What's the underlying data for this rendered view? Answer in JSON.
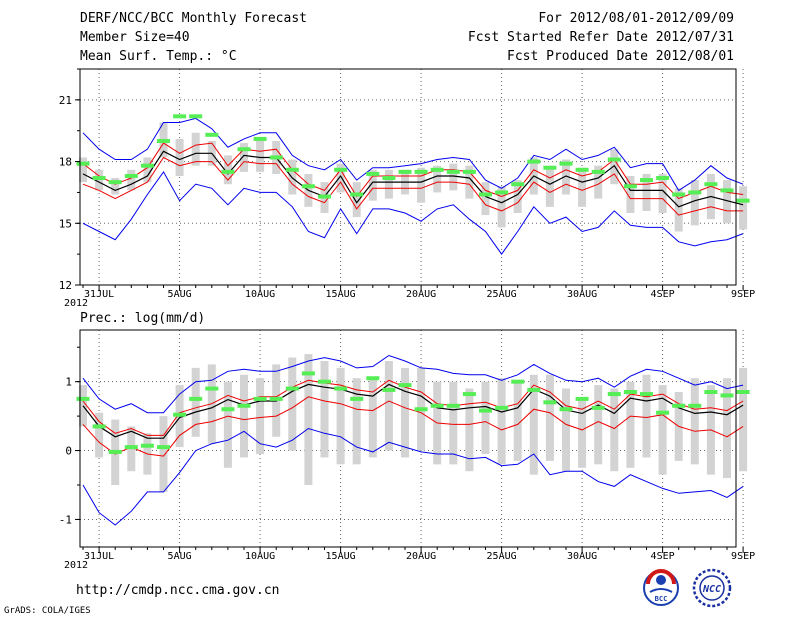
{
  "header": {
    "title": "DERF/NCC/BCC Monthly Forecast",
    "member_size": "Member Size=40",
    "variable": "Mean Surf. Temp.: °C",
    "period": "For 2012/08/01-2012/09/09",
    "started": "Fcst Started Refer Date 2012/07/31",
    "produced": "Fcst Produced Date 2012/08/01"
  },
  "footer": {
    "url": "http://cmdp.ncc.cma.gov.cn",
    "grads": "GrADS: COLA/IGES",
    "bcc_logo_text": "BCC",
    "ncc_logo_text": "NCC"
  },
  "colors": {
    "envelope": "#0000ee",
    "spread": "#ee0000",
    "mean": "#000000",
    "box": "#d3d3d3",
    "marker": "#55ee55",
    "grid": "#666666"
  },
  "chart_data": [
    {
      "type": "line",
      "title": "Mean Surf. Temp.: °C",
      "x_days": 41,
      "x_tick_labels": [
        "31JUL",
        "5AUG",
        "10AUG",
        "15AUG",
        "20AUG",
        "25AUG",
        "30AUG",
        "4SEP",
        "9SEP"
      ],
      "x_year_label": "2012",
      "ylim": [
        12,
        22.5
      ],
      "y_ticks": [
        12,
        15,
        18,
        21
      ],
      "series": [
        {
          "name": "max",
          "values": [
            19.4,
            18.6,
            18.1,
            18.1,
            18.6,
            19.9,
            19.9,
            20.1,
            19.6,
            18.7,
            19.1,
            19.4,
            19.4,
            18.3,
            17.8,
            17.6,
            18.1,
            17.1,
            17.7,
            17.7,
            17.8,
            17.9,
            18.1,
            18.2,
            18.1,
            17.1,
            16.7,
            17.2,
            18.3,
            18.1,
            18.6,
            18.1,
            18.3,
            18.7,
            17.7,
            17.9,
            17.9,
            16.6,
            17.1,
            17.8,
            17.2,
            16.9
          ]
        },
        {
          "name": "upper",
          "values": [
            17.9,
            17.3,
            16.9,
            17.2,
            17.7,
            18.9,
            18.4,
            18.8,
            18.9,
            17.8,
            18.6,
            18.5,
            18.6,
            17.6,
            16.9,
            16.6,
            17.6,
            16.3,
            17.3,
            17.3,
            17.3,
            17.3,
            17.6,
            17.6,
            17.5,
            16.6,
            16.3,
            16.6,
            17.6,
            17.2,
            17.6,
            17.3,
            17.5,
            18.1,
            16.9,
            16.9,
            17.0,
            16.2,
            16.5,
            16.8,
            16.5,
            16.4
          ]
        },
        {
          "name": "mean",
          "values": [
            17.4,
            17.0,
            16.6,
            16.9,
            17.3,
            18.5,
            18.1,
            18.4,
            18.4,
            17.4,
            18.3,
            18.2,
            18.2,
            17.2,
            16.6,
            16.3,
            17.3,
            16.0,
            17.0,
            17.0,
            17.0,
            17.0,
            17.3,
            17.3,
            17.2,
            16.3,
            16.0,
            16.4,
            17.3,
            16.9,
            17.3,
            17.0,
            17.2,
            17.8,
            16.6,
            16.6,
            16.6,
            15.8,
            16.1,
            16.3,
            16.1,
            15.9
          ]
        },
        {
          "name": "lower",
          "values": [
            16.9,
            16.6,
            16.2,
            16.6,
            17.0,
            18.2,
            17.8,
            18.0,
            18.0,
            17.1,
            18.0,
            17.9,
            17.9,
            16.9,
            16.3,
            16.0,
            17.0,
            15.7,
            16.7,
            16.7,
            16.7,
            16.7,
            17.0,
            17.0,
            16.9,
            15.9,
            15.6,
            16.0,
            17.0,
            16.5,
            16.9,
            16.6,
            16.9,
            17.4,
            16.2,
            16.2,
            16.2,
            15.4,
            15.6,
            15.8,
            15.6,
            15.6
          ]
        },
        {
          "name": "min",
          "values": [
            15.0,
            14.6,
            14.2,
            15.2,
            16.4,
            17.5,
            16.1,
            16.9,
            16.7,
            15.9,
            16.7,
            16.5,
            16.5,
            15.8,
            14.6,
            14.3,
            15.7,
            14.5,
            15.7,
            15.7,
            15.5,
            15.1,
            15.7,
            15.9,
            15.2,
            14.6,
            13.5,
            14.6,
            15.8,
            15.0,
            15.3,
            14.6,
            14.8,
            15.6,
            14.9,
            14.8,
            14.8,
            14.1,
            13.9,
            14.1,
            14.2,
            14.5
          ]
        }
      ],
      "boxes": [
        [
          17.0,
          18.2
        ],
        [
          16.6,
          17.6
        ],
        [
          16.4,
          17.2
        ],
        [
          16.6,
          17.6
        ],
        [
          17.0,
          18.2
        ],
        [
          18.2,
          19.9
        ],
        [
          17.3,
          19.1
        ],
        [
          17.8,
          19.4
        ],
        [
          17.8,
          19.0
        ],
        [
          16.9,
          18.3
        ],
        [
          17.5,
          18.9
        ],
        [
          17.5,
          19.2
        ],
        [
          17.4,
          19.0
        ],
        [
          16.4,
          18.1
        ],
        [
          15.8,
          17.4
        ],
        [
          15.5,
          17.0
        ],
        [
          16.5,
          17.9
        ],
        [
          15.3,
          17.0
        ],
        [
          16.1,
          17.6
        ],
        [
          16.2,
          17.6
        ],
        [
          16.4,
          17.6
        ],
        [
          16.0,
          17.7
        ],
        [
          16.5,
          17.8
        ],
        [
          16.6,
          17.9
        ],
        [
          16.2,
          17.8
        ],
        [
          15.4,
          17.0
        ],
        [
          14.8,
          16.8
        ],
        [
          15.5,
          17.1
        ],
        [
          16.4,
          18.2
        ],
        [
          15.8,
          17.8
        ],
        [
          16.4,
          18.1
        ],
        [
          15.8,
          17.7
        ],
        [
          16.2,
          17.8
        ],
        [
          16.9,
          18.6
        ],
        [
          15.5,
          17.3
        ],
        [
          15.6,
          17.4
        ],
        [
          15.5,
          17.4
        ],
        [
          14.6,
          16.7
        ],
        [
          14.9,
          17.1
        ],
        [
          15.2,
          17.4
        ],
        [
          15.0,
          17.1
        ],
        [
          14.7,
          16.8
        ]
      ],
      "markers": [
        17.9,
        17.2,
        17.0,
        17.3,
        17.8,
        19.0,
        20.2,
        20.2,
        19.3,
        17.5,
        18.6,
        19.1,
        18.2,
        17.6,
        16.8,
        16.3,
        17.6,
        16.4,
        17.4,
        17.2,
        17.5,
        17.5,
        17.6,
        17.5,
        17.5,
        16.4,
        16.5,
        16.9,
        18.0,
        17.7,
        17.9,
        17.6,
        17.5,
        18.1,
        16.8,
        17.1,
        17.2,
        16.4,
        16.5,
        16.9,
        16.6,
        16.1
      ]
    },
    {
      "type": "line",
      "title": "Prec.: log(mm/d)",
      "x_days": 41,
      "x_tick_labels": [
        "31JUL",
        "5AUG",
        "10AUG",
        "15AUG",
        "20AUG",
        "25AUG",
        "30AUG",
        "4SEP",
        "9SEP"
      ],
      "x_year_label": "2012",
      "ylim": [
        -1.4,
        1.75
      ],
      "y_ticks": [
        -1,
        0,
        1
      ],
      "series": [
        {
          "name": "max",
          "values": [
            1.05,
            0.75,
            0.6,
            0.68,
            0.55,
            0.55,
            0.82,
            1.0,
            1.02,
            1.15,
            1.18,
            1.15,
            1.15,
            1.22,
            1.3,
            1.35,
            1.3,
            1.2,
            1.22,
            1.38,
            1.3,
            1.2,
            1.18,
            1.12,
            1.1,
            1.1,
            1.02,
            1.1,
            1.25,
            1.12,
            1.02,
            1.0,
            1.05,
            0.92,
            1.08,
            1.18,
            1.15,
            1.05,
            0.95,
            1.0,
            0.9,
            0.95
          ]
        },
        {
          "name": "upper",
          "values": [
            0.72,
            0.42,
            0.25,
            0.32,
            0.22,
            0.22,
            0.55,
            0.62,
            0.68,
            0.8,
            0.72,
            0.78,
            0.78,
            0.92,
            1.02,
            0.98,
            0.95,
            0.88,
            0.85,
            1.02,
            0.92,
            0.85,
            0.68,
            0.65,
            0.68,
            0.7,
            0.62,
            0.68,
            0.95,
            0.85,
            0.65,
            0.6,
            0.72,
            0.6,
            0.82,
            0.78,
            0.82,
            0.68,
            0.6,
            0.62,
            0.58,
            0.72
          ]
        },
        {
          "name": "mean",
          "values": [
            0.65,
            0.35,
            0.2,
            0.28,
            0.18,
            0.18,
            0.48,
            0.56,
            0.62,
            0.74,
            0.66,
            0.72,
            0.72,
            0.86,
            0.96,
            0.92,
            0.89,
            0.82,
            0.79,
            0.96,
            0.86,
            0.79,
            0.62,
            0.59,
            0.62,
            0.64,
            0.56,
            0.62,
            0.89,
            0.79,
            0.59,
            0.54,
            0.66,
            0.54,
            0.76,
            0.72,
            0.76,
            0.62,
            0.54,
            0.56,
            0.52,
            0.66
          ]
        },
        {
          "name": "lower",
          "values": [
            0.38,
            0.12,
            -0.05,
            0.05,
            -0.05,
            -0.08,
            0.22,
            0.38,
            0.42,
            0.5,
            0.45,
            0.48,
            0.5,
            0.62,
            0.78,
            0.72,
            0.68,
            0.6,
            0.58,
            0.72,
            0.62,
            0.55,
            0.4,
            0.38,
            0.38,
            0.42,
            0.3,
            0.38,
            0.6,
            0.55,
            0.38,
            0.3,
            0.42,
            0.32,
            0.5,
            0.48,
            0.52,
            0.35,
            0.28,
            0.3,
            0.2,
            0.35
          ]
        },
        {
          "name": "min",
          "values": [
            -0.5,
            -0.9,
            -1.08,
            -0.88,
            -0.6,
            -0.6,
            -0.32,
            0.0,
            0.1,
            0.15,
            0.28,
            0.1,
            0.05,
            0.15,
            0.32,
            0.25,
            0.2,
            0.05,
            -0.02,
            0.12,
            0.05,
            -0.02,
            -0.05,
            -0.05,
            -0.12,
            -0.1,
            -0.22,
            -0.2,
            -0.05,
            -0.35,
            -0.3,
            -0.3,
            -0.45,
            -0.52,
            -0.35,
            -0.45,
            -0.55,
            -0.62,
            -0.6,
            -0.58,
            -0.68,
            -0.52
          ]
        }
      ],
      "boxes": [
        [
          0.35,
          0.95
        ],
        [
          -0.1,
          0.55
        ],
        [
          -0.5,
          0.45
        ],
        [
          -0.3,
          0.35
        ],
        [
          -0.35,
          0.25
        ],
        [
          -0.6,
          0.5
        ],
        [
          0.05,
          0.95
        ],
        [
          0.2,
          1.2
        ],
        [
          0.1,
          1.25
        ],
        [
          -0.25,
          1.0
        ],
        [
          -0.1,
          1.1
        ],
        [
          -0.05,
          1.05
        ],
        [
          0.2,
          1.25
        ],
        [
          0.0,
          1.35
        ],
        [
          -0.5,
          1.4
        ],
        [
          -0.1,
          1.3
        ],
        [
          -0.2,
          1.2
        ],
        [
          -0.2,
          1.05
        ],
        [
          -0.1,
          1.05
        ],
        [
          0.0,
          1.3
        ],
        [
          -0.1,
          1.2
        ],
        [
          0.0,
          1.2
        ],
        [
          -0.2,
          1.0
        ],
        [
          -0.2,
          1.0
        ],
        [
          -0.3,
          0.9
        ],
        [
          -0.05,
          1.0
        ],
        [
          -0.2,
          1.05
        ],
        [
          -0.15,
          1.0
        ],
        [
          -0.35,
          1.1
        ],
        [
          -0.15,
          1.1
        ],
        [
          -0.3,
          0.9
        ],
        [
          -0.25,
          0.75
        ],
        [
          -0.2,
          0.95
        ],
        [
          -0.3,
          0.9
        ],
        [
          -0.25,
          1.0
        ],
        [
          -0.1,
          1.1
        ],
        [
          -0.35,
          0.95
        ],
        [
          -0.15,
          0.85
        ],
        [
          -0.2,
          1.05
        ],
        [
          -0.35,
          0.95
        ],
        [
          -0.4,
          1.05
        ],
        [
          -0.3,
          1.2
        ]
      ],
      "markers": [
        0.75,
        0.35,
        -0.02,
        0.05,
        0.07,
        0.05,
        0.52,
        0.75,
        0.9,
        0.6,
        0.65,
        0.75,
        0.75,
        0.9,
        1.12,
        1.0,
        0.9,
        0.75,
        1.05,
        0.88,
        0.95,
        0.6,
        0.65,
        0.65,
        0.82,
        0.58,
        0.62,
        1.0,
        0.88,
        0.7,
        0.6,
        0.75,
        0.62,
        0.82,
        0.85,
        0.82,
        0.55,
        0.65,
        0.65,
        0.85,
        0.8,
        0.85
      ]
    }
  ]
}
